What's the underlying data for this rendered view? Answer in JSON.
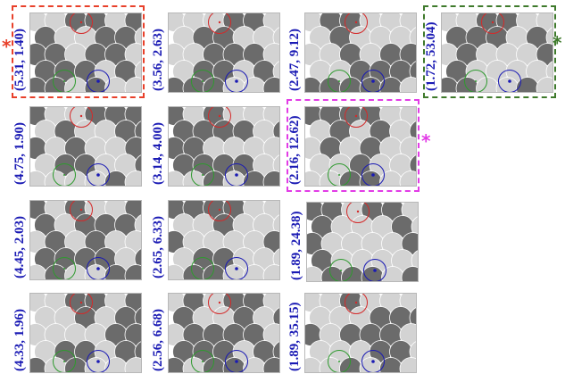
{
  "colors": {
    "label": "#1a1ab4",
    "light_disk": "#d3d3d3",
    "dark_disk": "#6b6b6b",
    "disk_edge": "#ffffff",
    "red_marker": "#d42a2a",
    "green_marker": "#2e9a2e",
    "blue_marker": "#1a1ab4",
    "highlight_red": "#e8402a",
    "highlight_green": "#3f7a2c",
    "highlight_magenta": "#e23ce6"
  },
  "panels": [
    {
      "label": "(5.31, 1.40)",
      "highlight": "red"
    },
    {
      "label": "(4.75, 1.90)"
    },
    {
      "label": "(4.45, 2.03)"
    },
    {
      "label": "(4.33, 1.96)"
    },
    {
      "label": "(3.56, 2.63)"
    },
    {
      "label": "(3.14, 4.00)"
    },
    {
      "label": "(2.65, 6.33)"
    },
    {
      "label": "(2.56, 6.68)"
    },
    {
      "label": "(2.47, 9.12)"
    },
    {
      "label": "(2.16, 12.62)",
      "highlight": "magenta"
    },
    {
      "label": "(1.89, 24.38)"
    },
    {
      "label": "(1.89, 35.15)"
    },
    {
      "label": "(1.72, 53.04)",
      "highlight": "green"
    }
  ],
  "stars": [
    {
      "symbol": "*",
      "color": "red"
    },
    {
      "symbol": "*",
      "color": "green"
    },
    {
      "symbol": "*",
      "color": "magenta"
    }
  ]
}
